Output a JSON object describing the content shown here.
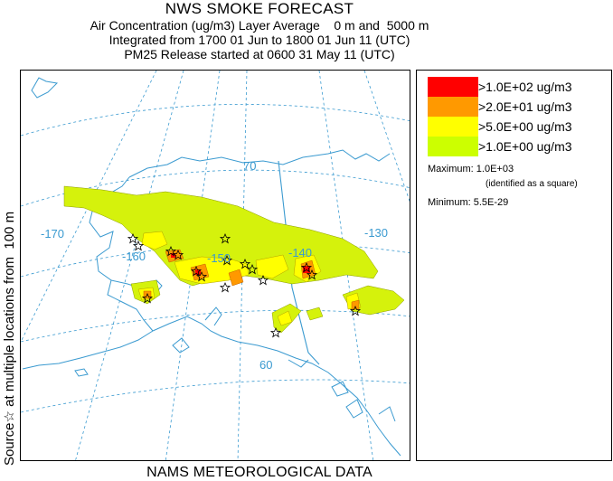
{
  "header": {
    "title": "NWS SMOKE FORECAST",
    "line2": "Air Concentration (ug/m3) Layer Average    0 m and  5000 m",
    "line3": "Integrated from 1700 01 Jun to 1800 01 Jun 11 (UTC)",
    "line4": "PM25 Release started at 0600 31 May 11 (UTC)"
  },
  "side_label": "Source☆ at multiple locations from  100 m",
  "footer": "NAMS METEOROLOGICAL DATA",
  "map": {
    "longitude_labels": [
      "-170",
      "-160",
      "-150",
      "-140",
      "-130"
    ],
    "latitude_labels": [
      "70",
      "60"
    ],
    "colors": {
      "coast": "#3a9ad0",
      "grid": "#3a9ad0",
      "level_1": "#d5f20c",
      "level_2": "#ffff00",
      "level_3": "#ff9900",
      "level_4": "#ff0000"
    },
    "source_marker": "star-icon"
  },
  "legend": {
    "items": [
      {
        "label": ">1.0E+02 ug/m3",
        "color": "#ff0000"
      },
      {
        "label": ">2.0E+01 ug/m3",
        "color": "#ff9900"
      },
      {
        "label": ">5.0E+00 ug/m3",
        "color": "#ffff00"
      },
      {
        "label": ">1.0E+00 ug/m3",
        "color": "#ccff00"
      }
    ],
    "maximum_label": "Maximum:",
    "maximum_value": "1.0E+03",
    "maximum_note": "(identified as a square)",
    "minimum_label": "Minimum:",
    "minimum_value": "5.5E-29"
  }
}
